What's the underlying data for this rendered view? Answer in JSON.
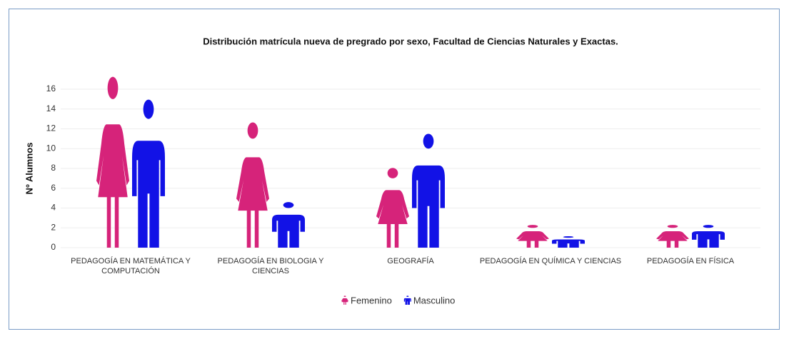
{
  "chart_data": {
    "type": "pictograph",
    "title": "Distribución matrícula nueva de pregrado por sexo, Facultad de Ciencias Naturales y Exactas.",
    "y_label": "Nº Alumnos",
    "categories": [
      "PEDAGOGÍA EN MATEMÁTICA Y COMPUTACIÓN",
      "PEDAGOGÍA EN BIOLOGIA Y CIENCIAS",
      "GEOGRAFÍA",
      "PEDAGOGÍA EN QUÍMICA Y CIENCIAS",
      "PEDAGOGÍA EN FÍSICA"
    ],
    "series": [
      {
        "name": "Femenino",
        "color": "#d6237a",
        "values": [
          15,
          11,
          7,
          2,
          2
        ]
      },
      {
        "name": "Masculino",
        "color": "#1212e6",
        "values": [
          13,
          4,
          10,
          1,
          2
        ]
      }
    ],
    "ylim": [
      0,
      16
    ],
    "yticks": [
      0,
      2,
      4,
      6,
      8,
      10,
      12,
      14,
      16
    ],
    "grid": true,
    "legend": "bottom"
  }
}
